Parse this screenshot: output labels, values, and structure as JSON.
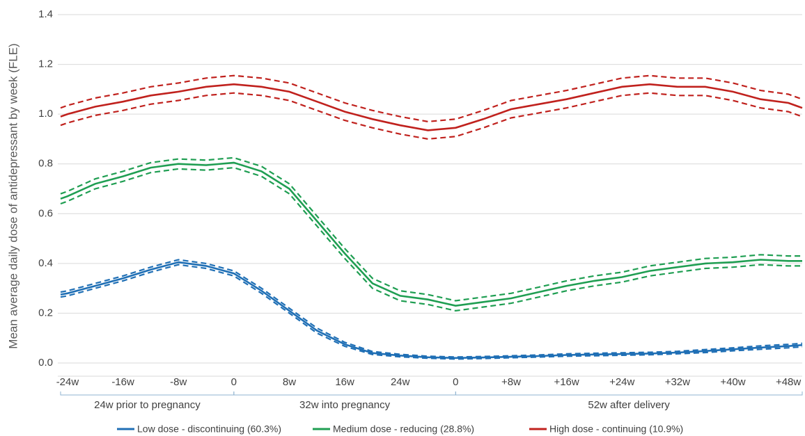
{
  "chart_data": {
    "type": "line",
    "y_label": "Mean average daily dose of antidepressant by week  (FLE)",
    "x": [
      -25,
      -24,
      -20,
      -16,
      -12,
      -8,
      -4,
      0,
      4,
      8,
      12,
      16,
      20,
      24,
      28,
      32,
      36,
      40,
      44,
      48,
      52,
      56,
      60,
      64,
      68,
      72,
      76,
      80,
      82
    ],
    "xlim": [
      -25,
      82
    ],
    "xticks": [
      {
        "value": -24,
        "label": "-24w"
      },
      {
        "value": -16,
        "label": "-16w"
      },
      {
        "value": -8,
        "label": "-8w"
      },
      0,
      {
        "value": 8,
        "label": "8w"
      },
      {
        "value": 16,
        "label": "16w"
      },
      {
        "value": 24,
        "label": "24w"
      },
      {
        "value": 32,
        "label": "0"
      },
      {
        "value": 40,
        "label": "+8w"
      },
      {
        "value": 48,
        "label": "+16w"
      },
      {
        "value": 56,
        "label": "+24w"
      },
      {
        "value": 64,
        "label": "+32w"
      },
      {
        "value": 72,
        "label": "+40w"
      },
      {
        "value": 80,
        "label": "+48w"
      }
    ],
    "x_groups": [
      {
        "label": "24w prior to pregnancy",
        "from": -25,
        "to": 0
      },
      {
        "label": "32w into pregnancy",
        "from": 0,
        "to": 32
      },
      {
        "label": "52w after delivery",
        "from": 32,
        "to": 82
      }
    ],
    "ylim": [
      0,
      1.4
    ],
    "yticks": [
      {
        "value": 0,
        "label": "0.0"
      },
      0.2,
      0.4,
      0.6,
      0.8,
      {
        "value": 1,
        "label": "1.0"
      },
      1.2,
      1.4
    ],
    "grid": true,
    "series": [
      {
        "name": "Low dose - discontinuing (60.3%)",
        "color": "#1f6fb5",
        "values": [
          0.275,
          0.28,
          0.31,
          0.34,
          0.375,
          0.405,
          0.39,
          0.36,
          0.29,
          0.21,
          0.13,
          0.075,
          0.04,
          0.03,
          0.023,
          0.02,
          0.022,
          0.025,
          0.028,
          0.032,
          0.034,
          0.036,
          0.038,
          0.042,
          0.048,
          0.055,
          0.062,
          0.068,
          0.072
        ],
        "lower": [
          0.265,
          0.27,
          0.3,
          0.33,
          0.365,
          0.395,
          0.38,
          0.35,
          0.28,
          0.2,
          0.12,
          0.067,
          0.034,
          0.025,
          0.019,
          0.016,
          0.018,
          0.021,
          0.024,
          0.027,
          0.029,
          0.031,
          0.033,
          0.037,
          0.042,
          0.049,
          0.055,
          0.061,
          0.065
        ],
        "upper": [
          0.285,
          0.29,
          0.32,
          0.35,
          0.385,
          0.415,
          0.4,
          0.37,
          0.3,
          0.22,
          0.14,
          0.083,
          0.046,
          0.035,
          0.027,
          0.024,
          0.026,
          0.029,
          0.032,
          0.037,
          0.039,
          0.041,
          0.043,
          0.047,
          0.054,
          0.061,
          0.069,
          0.075,
          0.079
        ]
      },
      {
        "name": "Medium dose - reducing (28.8%)",
        "color": "#1f9e52",
        "values": [
          0.66,
          0.67,
          0.72,
          0.75,
          0.785,
          0.8,
          0.795,
          0.805,
          0.77,
          0.7,
          0.57,
          0.44,
          0.32,
          0.27,
          0.255,
          0.23,
          0.245,
          0.26,
          0.285,
          0.31,
          0.33,
          0.345,
          0.37,
          0.385,
          0.4,
          0.405,
          0.415,
          0.41,
          0.41
        ],
        "lower": [
          0.64,
          0.65,
          0.7,
          0.73,
          0.765,
          0.78,
          0.775,
          0.785,
          0.75,
          0.68,
          0.55,
          0.42,
          0.3,
          0.25,
          0.235,
          0.21,
          0.225,
          0.24,
          0.265,
          0.29,
          0.31,
          0.325,
          0.35,
          0.365,
          0.38,
          0.385,
          0.395,
          0.39,
          0.39
        ],
        "upper": [
          0.68,
          0.69,
          0.74,
          0.77,
          0.805,
          0.82,
          0.815,
          0.825,
          0.79,
          0.72,
          0.59,
          0.46,
          0.34,
          0.29,
          0.275,
          0.25,
          0.265,
          0.28,
          0.305,
          0.33,
          0.35,
          0.365,
          0.39,
          0.405,
          0.42,
          0.425,
          0.435,
          0.43,
          0.43
        ]
      },
      {
        "name": "High dose - continuing (10.9%)",
        "color": "#c0211d",
        "values": [
          0.99,
          1.0,
          1.03,
          1.05,
          1.075,
          1.09,
          1.11,
          1.12,
          1.11,
          1.09,
          1.05,
          1.01,
          0.98,
          0.955,
          0.935,
          0.945,
          0.98,
          1.02,
          1.04,
          1.06,
          1.085,
          1.11,
          1.12,
          1.11,
          1.11,
          1.09,
          1.06,
          1.045,
          1.025
        ],
        "lower": [
          0.955,
          0.965,
          0.995,
          1.015,
          1.04,
          1.055,
          1.075,
          1.085,
          1.075,
          1.055,
          1.015,
          0.975,
          0.945,
          0.92,
          0.9,
          0.91,
          0.945,
          0.985,
          1.005,
          1.025,
          1.05,
          1.075,
          1.085,
          1.075,
          1.075,
          1.055,
          1.025,
          1.01,
          0.99
        ],
        "upper": [
          1.025,
          1.035,
          1.065,
          1.085,
          1.11,
          1.125,
          1.145,
          1.155,
          1.145,
          1.125,
          1.085,
          1.045,
          1.015,
          0.99,
          0.97,
          0.98,
          1.015,
          1.055,
          1.075,
          1.095,
          1.12,
          1.145,
          1.155,
          1.145,
          1.145,
          1.125,
          1.095,
          1.08,
          1.06
        ]
      }
    ]
  }
}
